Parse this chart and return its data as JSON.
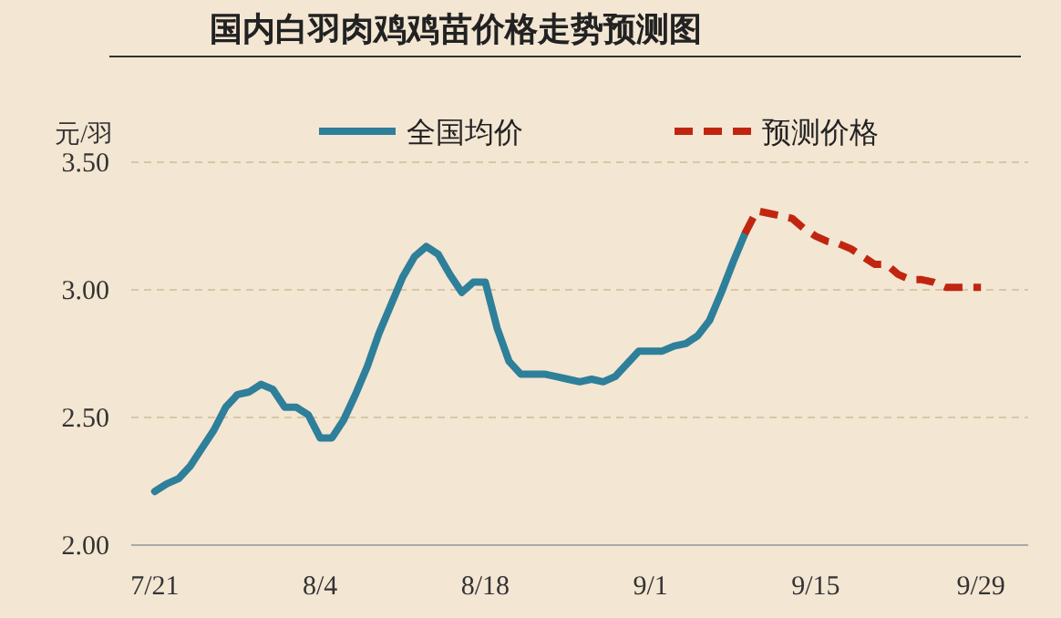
{
  "chart_data": {
    "type": "line",
    "title": "国内白羽肉鸡鸡苗价格走势预测图",
    "ylabel": "元/羽",
    "xlim": [
      "--07-19",
      "--10-03"
    ],
    "xticks": [
      {
        "value": "--07-21",
        "label": "7/21"
      },
      {
        "value": "--08-04",
        "label": "8/4"
      },
      {
        "value": "--08-18",
        "label": "8/18"
      },
      {
        "value": "--09-01",
        "label": "9/1"
      },
      {
        "value": "--09-15",
        "label": "9/15"
      },
      {
        "value": "--09-29",
        "label": "9/29"
      }
    ],
    "ylim": [
      2.0,
      3.5
    ],
    "yticks": [
      {
        "value": 2,
        "label": "2.00"
      },
      {
        "value": 2.5,
        "label": "2.50"
      },
      {
        "value": 3,
        "label": "3.00"
      },
      {
        "value": 3.5,
        "label": "3.50"
      }
    ],
    "grid": "y",
    "legend": "top",
    "marker": "none",
    "series": [
      {
        "name": "全国均价",
        "color": "#2e7f9a",
        "line_style": "solid",
        "x": [
          "--07-21",
          "--07-22",
          "--07-23",
          "--07-24",
          "--07-25",
          "--07-26",
          "--07-27",
          "--07-28",
          "--07-29",
          "--07-30",
          "--07-31",
          "--08-01",
          "--08-02",
          "--08-03",
          "--08-04",
          "--08-05",
          "--08-06",
          "--08-07",
          "--08-08",
          "--08-09",
          "--08-10",
          "--08-11",
          "--08-12",
          "--08-13",
          "--08-14",
          "--08-15",
          "--08-16",
          "--08-17",
          "--08-18",
          "--08-19",
          "--08-20",
          "--08-21",
          "--08-22",
          "--08-23",
          "--08-24",
          "--08-25",
          "--08-26",
          "--08-27",
          "--08-28",
          "--08-29",
          "--08-30",
          "--08-31",
          "--09-01",
          "--09-02",
          "--09-03",
          "--09-04",
          "--09-05",
          "--09-06",
          "--09-07",
          "--09-08",
          "--09-09"
        ],
        "values": [
          2.21,
          2.24,
          2.26,
          2.31,
          2.38,
          2.45,
          2.54,
          2.59,
          2.6,
          2.63,
          2.61,
          2.54,
          2.54,
          2.51,
          2.42,
          2.42,
          2.49,
          2.59,
          2.7,
          2.83,
          2.94,
          3.05,
          3.13,
          3.17,
          3.14,
          3.06,
          2.99,
          3.03,
          3.03,
          2.85,
          2.72,
          2.67,
          2.67,
          2.67,
          2.66,
          2.65,
          2.64,
          2.65,
          2.64,
          2.66,
          2.71,
          2.76,
          2.76,
          2.76,
          2.78,
          2.79,
          2.82,
          2.88,
          2.99,
          3.11,
          3.22
        ]
      },
      {
        "name": "预测价格",
        "color": "#c0260f",
        "line_style": "dashed",
        "x": [
          "--09-09",
          "--09-10",
          "--09-11",
          "--09-12",
          "--09-13",
          "--09-14",
          "--09-15",
          "--09-16",
          "--09-17",
          "--09-18",
          "--09-19",
          "--09-20",
          "--09-21",
          "--09-22",
          "--09-23",
          "--09-24",
          "--09-25",
          "--09-26",
          "--09-27",
          "--09-28",
          "--09-29"
        ],
        "values": [
          3.22,
          3.31,
          3.3,
          3.29,
          3.28,
          3.24,
          3.21,
          3.19,
          3.18,
          3.16,
          3.13,
          3.1,
          3.1,
          3.06,
          3.04,
          3.04,
          3.03,
          3.01,
          3.01,
          3.01,
          3.01
        ]
      }
    ]
  }
}
